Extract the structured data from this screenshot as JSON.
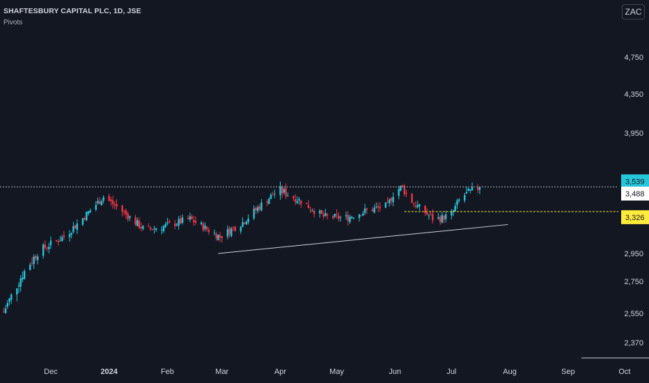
{
  "header": {
    "title": "SHAFTESBURY CAPITAL PLC, 1D, JSE",
    "indicator": "Pivots"
  },
  "currency_button": "ZAC",
  "colors": {
    "background": "#131722",
    "up": "#26c6da",
    "down": "#f23645",
    "text": "#d1d4dc",
    "trendline": "#d1d4dc",
    "last_price_label": "#26c6da",
    "pivot_label": "#ffeb3b",
    "mid_label": "#ffffff"
  },
  "chart_data": {
    "type": "candlestick",
    "y_tick_labels": [
      "4,750",
      "4,350",
      "3,950",
      "2,950",
      "2,750",
      "2,550",
      "2,370"
    ],
    "y_ticks": [
      4750,
      4350,
      3950,
      2950,
      2750,
      2550,
      2370
    ],
    "x_tick_labels": [
      "Dec",
      "2024",
      "Feb",
      "Mar",
      "Apr",
      "May",
      "Jun",
      "Jul",
      "Aug",
      "Sep",
      "Oct"
    ],
    "x_ticks": [
      "2023-12-01",
      "2024-01-01",
      "2024-02-01",
      "2024-03-01",
      "2024-04-01",
      "2024-05-01",
      "2024-06-01",
      "2024-07-01",
      "2024-08-01",
      "2024-09-01",
      "2024-10-01"
    ],
    "x_range": [
      "2023-11-04",
      "2024-10-14"
    ],
    "y_range": [
      2300,
      5000
    ],
    "price_labels": [
      {
        "text": "3,539",
        "value": 3539,
        "style": "last"
      },
      {
        "text": "3,488",
        "value": 3488,
        "style": "mid"
      },
      {
        "text": "3,326",
        "value": 3326,
        "style": "pivot"
      }
    ],
    "current_price_line": 3539,
    "pivot_line": {
      "value": 3326,
      "from": "2024-06-06",
      "to": "2024-07-31"
    },
    "trendline": {
      "from": {
        "date": "2024-02-28",
        "value": 2950
      },
      "to": {
        "date": "2024-07-31",
        "value": 3210
      }
    },
    "series_start_date": "2023-11-06",
    "series_end_date": "2024-07-16",
    "anchors": [
      [
        "2023-11-06",
        2560
      ],
      [
        "2023-11-16",
        2800
      ],
      [
        "2023-11-25",
        2980
      ],
      [
        "2023-12-08",
        3100
      ],
      [
        "2023-12-17",
        3250
      ],
      [
        "2023-12-29",
        3460
      ],
      [
        "2024-01-08",
        3330
      ],
      [
        "2024-01-20",
        3160
      ],
      [
        "2024-02-01",
        3200
      ],
      [
        "2024-02-13",
        3260
      ],
      [
        "2024-02-24",
        3150
      ],
      [
        "2024-02-29",
        3100
      ],
      [
        "2024-03-12",
        3230
      ],
      [
        "2024-03-24",
        3420
      ],
      [
        "2024-03-31",
        3520
      ],
      [
        "2024-04-11",
        3430
      ],
      [
        "2024-04-24",
        3280
      ],
      [
        "2024-05-06",
        3270
      ],
      [
        "2024-05-16",
        3330
      ],
      [
        "2024-05-28",
        3380
      ],
      [
        "2024-06-01",
        3520
      ],
      [
        "2024-06-05",
        3530
      ],
      [
        "2024-06-11",
        3400
      ],
      [
        "2024-06-22",
        3250
      ],
      [
        "2024-07-01",
        3300
      ],
      [
        "2024-07-06",
        3460
      ],
      [
        "2024-07-16",
        3539
      ]
    ]
  }
}
